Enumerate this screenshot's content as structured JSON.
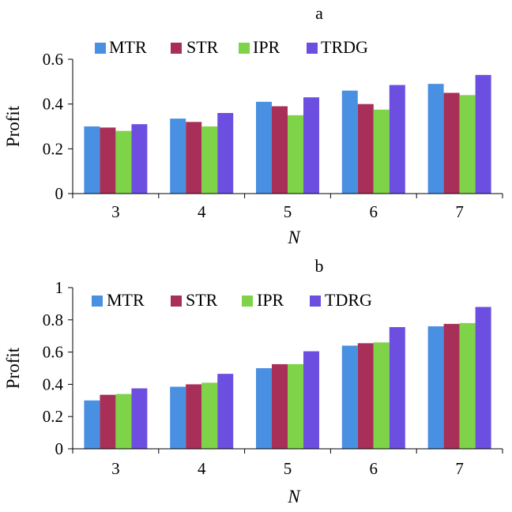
{
  "chart_data": [
    {
      "type": "bar",
      "title": "a",
      "xlabel": "N",
      "ylabel": "Profit",
      "categories": [
        "3",
        "4",
        "5",
        "6",
        "7"
      ],
      "yticks": [
        "0",
        "0.2",
        "0.4",
        "0.6"
      ],
      "ylim": [
        0,
        0.6
      ],
      "series": [
        {
          "name": "MTR",
          "color": "#4a90e2",
          "values": [
            0.3,
            0.335,
            0.41,
            0.46,
            0.49
          ]
        },
        {
          "name": "STR",
          "color": "#a83058",
          "values": [
            0.295,
            0.32,
            0.39,
            0.4,
            0.45
          ]
        },
        {
          "name": "IPR",
          "color": "#7ed348",
          "values": [
            0.28,
            0.3,
            0.35,
            0.375,
            0.44
          ]
        },
        {
          "name": "TRDG",
          "color": "#6c4fe0",
          "values": [
            0.31,
            0.36,
            0.43,
            0.485,
            0.53
          ]
        }
      ]
    },
    {
      "type": "bar",
      "title": "b",
      "xlabel": "N",
      "ylabel": "Profit",
      "categories": [
        "3",
        "4",
        "5",
        "6",
        "7"
      ],
      "yticks": [
        "0",
        "0.2",
        "0.4",
        "0.6",
        "0.8",
        "1"
      ],
      "ylim": [
        0,
        1
      ],
      "series": [
        {
          "name": "MTR",
          "color": "#4a90e2",
          "values": [
            0.3,
            0.385,
            0.5,
            0.64,
            0.76
          ]
        },
        {
          "name": "STR",
          "color": "#a83058",
          "values": [
            0.335,
            0.4,
            0.525,
            0.655,
            0.775
          ]
        },
        {
          "name": "IPR",
          "color": "#7ed348",
          "values": [
            0.34,
            0.41,
            0.525,
            0.66,
            0.78
          ]
        },
        {
          "name": "TDRG",
          "color": "#6c4fe0",
          "values": [
            0.375,
            0.465,
            0.605,
            0.755,
            0.88
          ]
        }
      ]
    }
  ]
}
